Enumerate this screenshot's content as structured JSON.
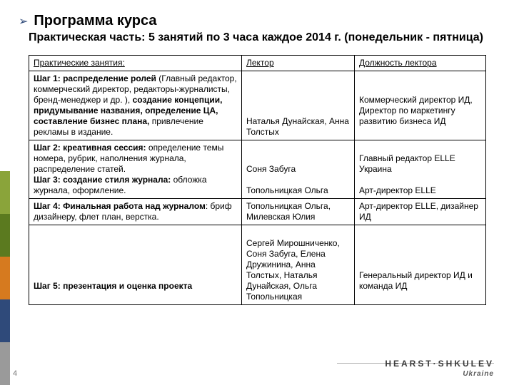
{
  "stripe_colors": [
    "#8aa43a",
    "#5b7a1f",
    "#d67a1f",
    "#2f4a7a",
    "#9a9a9a"
  ],
  "page_number": "4",
  "footer_brand": "HEARST·SHKULEV",
  "footer_sub": "Ukraine",
  "heading": {
    "bullet": "➢",
    "title": "Программа курса",
    "subtitle": "Практическая часть: 5 занятий по 3 часа каждое 2014 г. (понедельник - пятница)"
  },
  "table": {
    "headers": [
      "Практические занятия:",
      "Лектор",
      "Должность лектора"
    ],
    "rows": [
      {
        "c1_parts": [
          {
            "text": "Шаг 1: распределение ролей ",
            "bold": true
          },
          {
            "text": "(Главный редактор, коммерческий директор, редакторы-журналисты, бренд-менеджер и др. ), "
          },
          {
            "text": "создание концепции, придумывание названия, определение ЦА, составление бизнес плана, ",
            "bold": true
          },
          {
            "text": "привлечение рекламы в издание."
          }
        ],
        "c2": "\n\n\n\nНаталья Дунайская, Анна Толстых",
        "c3": "\n\nКоммерческий директор ИД,\nДиректор по маркетингу развитию бизнеса ИД"
      },
      {
        "c1_parts": [
          {
            "text": "Шаг 2: креативная сессия: ",
            "bold": true
          },
          {
            "text": "определение темы номера, рубрик, наполнения журнала, распределение статей.\n"
          },
          {
            "text": "Шаг 3: создание стиля журнала: ",
            "bold": true
          },
          {
            "text": "обложка журнала, оформление."
          }
        ],
        "c2": "\n\nСоня Забуга\n\nТопольницкая Ольга",
        "c3": "\nГлавный редактор ELLE Украина\n\nАрт-директор ELLE"
      },
      {
        "c1_parts": [
          {
            "text": "Шаг 4: Финальная работа над журналом",
            "bold": true
          },
          {
            "text": ": бриф дизайнеру, флет план, верстка."
          }
        ],
        "c2": "Топольницкая Ольга, Милевская Юлия",
        "c3": "Арт-директор ELLE, дизайнер ИД"
      },
      {
        "c1_parts": [
          {
            "text": "\n\n\n\n\n"
          },
          {
            "text": "Шаг 5: презентация и оценка проекта",
            "bold": true
          }
        ],
        "c2": "\nСергей Мирошниченко, Соня Забуга, Елена Дружинина, Анна Толстых, Наталья Дунайская, Ольга Топольницкая",
        "c3": "\n\n\n\nГенеральный директор ИД и команда ИД"
      }
    ]
  }
}
